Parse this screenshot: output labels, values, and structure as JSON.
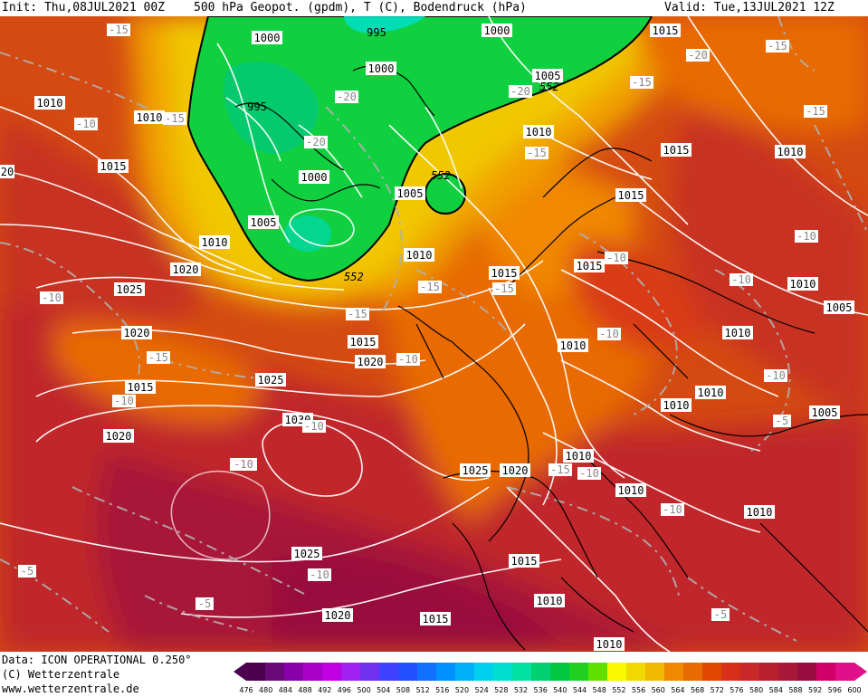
{
  "header": {
    "init": "Init: Thu,08JUL2021 00Z",
    "title": "500 hPa Geopot. (gpdm), T (C), Bodendruck (hPa)",
    "valid": "Valid: Tue,13JUL2021 12Z"
  },
  "footer": {
    "data_line": "Data: ICON OPERATIONAL 0.250°",
    "copyright": "(C) Wetterzentrale",
    "website": "www.wetterzentrale.de"
  },
  "colorbar": {
    "ticks": [
      "476",
      "480",
      "484",
      "488",
      "492",
      "496",
      "500",
      "504",
      "508",
      "512",
      "516",
      "520",
      "524",
      "528",
      "532",
      "536",
      "540",
      "544",
      "548",
      "552",
      "556",
      "560",
      "564",
      "568",
      "572",
      "576",
      "580",
      "584",
      "588",
      "592",
      "596",
      "600"
    ],
    "colors": [
      "#4b0050",
      "#6a0a7a",
      "#8a00a8",
      "#a800c8",
      "#c000e0",
      "#a020f0",
      "#7030f0",
      "#4040ff",
      "#2050ff",
      "#1070ff",
      "#0090ff",
      "#00b0f8",
      "#00d0f0",
      "#00e0d0",
      "#00e0a0",
      "#00d070",
      "#00c840",
      "#20d020",
      "#60e000",
      "#f8f800",
      "#f0d800",
      "#f0b800",
      "#f08800",
      "#e86a00",
      "#e04800",
      "#d83018",
      "#c82828",
      "#b82030",
      "#a81838",
      "#980c40",
      "#d00068",
      "#e0108a"
    ]
  },
  "map": {
    "pressure_labels": [
      {
        "text": "1000"
      },
      {
        "text": "995"
      },
      {
        "text": "1000"
      },
      {
        "text": "1015"
      },
      {
        "text": "1000"
      },
      {
        "text": "1005"
      },
      {
        "text": "995"
      },
      {
        "text": "1010"
      },
      {
        "text": "1010"
      },
      {
        "text": "1015"
      },
      {
        "text": "1010"
      },
      {
        "text": "1015"
      },
      {
        "text": "1010"
      },
      {
        "text": "1000"
      },
      {
        "text": "1005"
      },
      {
        "text": "1015"
      },
      {
        "text": "1005"
      },
      {
        "text": "1010"
      },
      {
        "text": "1010"
      },
      {
        "text": "1020"
      },
      {
        "text": "1015"
      },
      {
        "text": "1015"
      },
      {
        "text": "1025"
      },
      {
        "text": "1010"
      },
      {
        "text": "1005"
      },
      {
        "text": "1020"
      },
      {
        "text": "1015"
      },
      {
        "text": "1010"
      },
      {
        "text": "1010"
      },
      {
        "text": "1015"
      },
      {
        "text": "1020"
      },
      {
        "text": "1010"
      },
      {
        "text": "1010"
      },
      {
        "text": "1025"
      },
      {
        "text": "1005"
      },
      {
        "text": "1030"
      },
      {
        "text": "1020"
      },
      {
        "text": "1010"
      },
      {
        "text": "1025"
      },
      {
        "text": "1020"
      },
      {
        "text": "1010"
      },
      {
        "text": "1010"
      },
      {
        "text": "1025"
      },
      {
        "text": "1015"
      },
      {
        "text": "1010"
      },
      {
        "text": "1020"
      },
      {
        "text": "1015"
      },
      {
        "text": "1010"
      },
      {
        "text": "20"
      }
    ],
    "temp_labels": [
      {
        "text": "-15"
      },
      {
        "text": "-20"
      },
      {
        "text": "-15"
      },
      {
        "text": "-10"
      },
      {
        "text": "-15"
      },
      {
        "text": "-20"
      },
      {
        "text": "-20"
      },
      {
        "text": "-15"
      },
      {
        "text": "-15"
      },
      {
        "text": "-20"
      },
      {
        "text": "-15"
      },
      {
        "text": "-10"
      },
      {
        "text": "-15"
      },
      {
        "text": "-10"
      },
      {
        "text": "-10"
      },
      {
        "text": "-10"
      },
      {
        "text": "-15"
      },
      {
        "text": "-10"
      },
      {
        "text": "-10"
      },
      {
        "text": "-10"
      },
      {
        "text": "-15"
      },
      {
        "text": "-10"
      },
      {
        "text": "-10"
      },
      {
        "text": "-15"
      },
      {
        "text": "-10"
      },
      {
        "text": "-10"
      },
      {
        "text": "-5"
      },
      {
        "text": "-10"
      },
      {
        "text": "-10"
      },
      {
        "text": "-5"
      },
      {
        "text": "-5"
      },
      {
        "text": "-5"
      },
      {
        "text": "-15"
      }
    ],
    "geopot_labels": [
      {
        "text": "552"
      },
      {
        "text": "552"
      },
      {
        "text": "552"
      }
    ]
  }
}
